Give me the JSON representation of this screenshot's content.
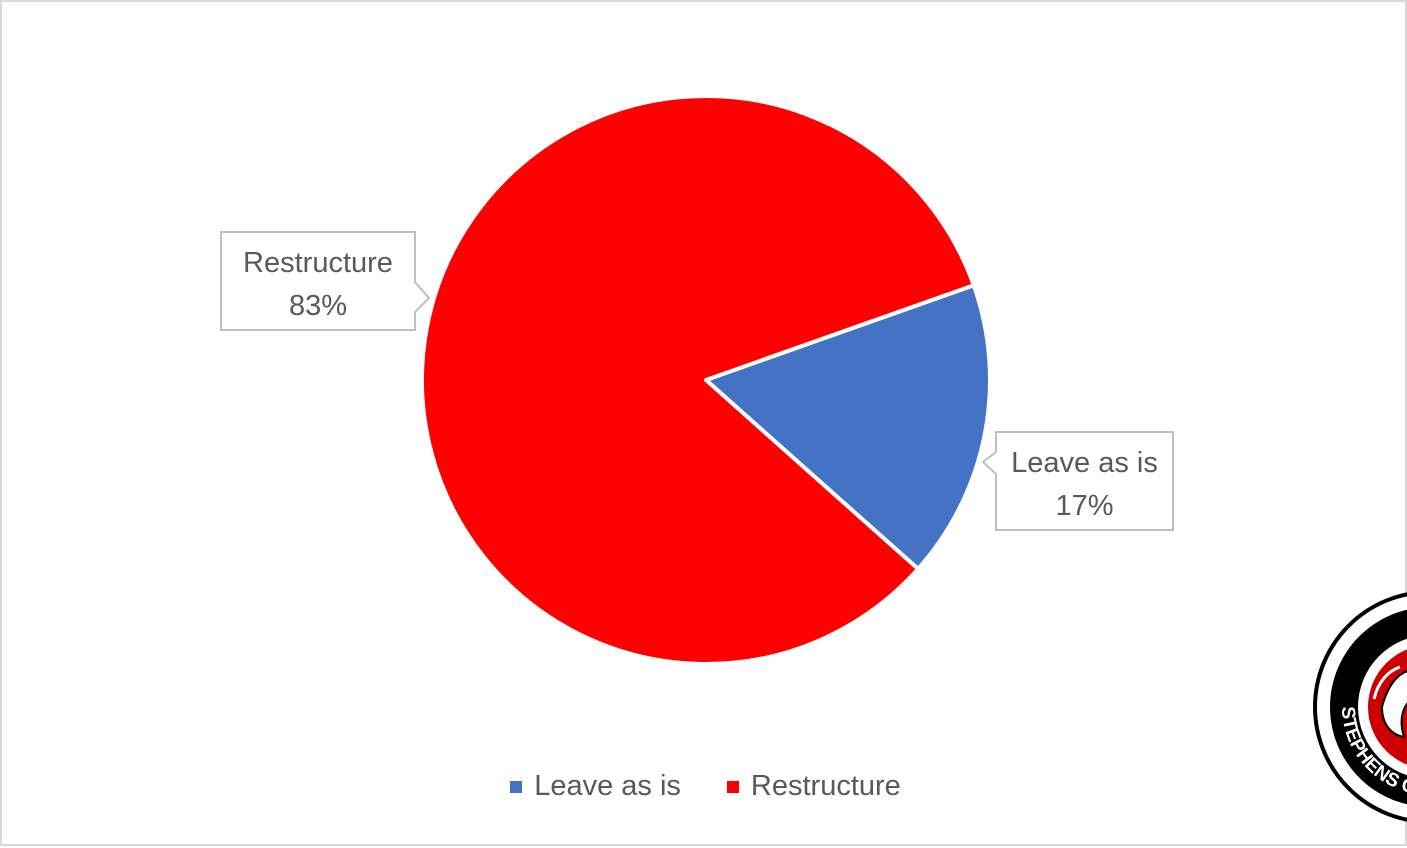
{
  "chart_data": {
    "type": "pie",
    "title": "",
    "slices": [
      {
        "label": "Leave as is",
        "value": 17,
        "display": "17%",
        "color": "#4472C4"
      },
      {
        "label": "Restructure",
        "value": 83,
        "display": "83%",
        "color": "#FF0000"
      }
    ],
    "legend_position": "bottom",
    "data_labels": "callout"
  },
  "legend": {
    "items": [
      {
        "label": "Leave as is",
        "color": "#4472C4"
      },
      {
        "label": "Restructure",
        "color": "#FF0000"
      }
    ]
  },
  "logo": {
    "icon": "college-seal-icon",
    "text": "STEPHENS C"
  }
}
